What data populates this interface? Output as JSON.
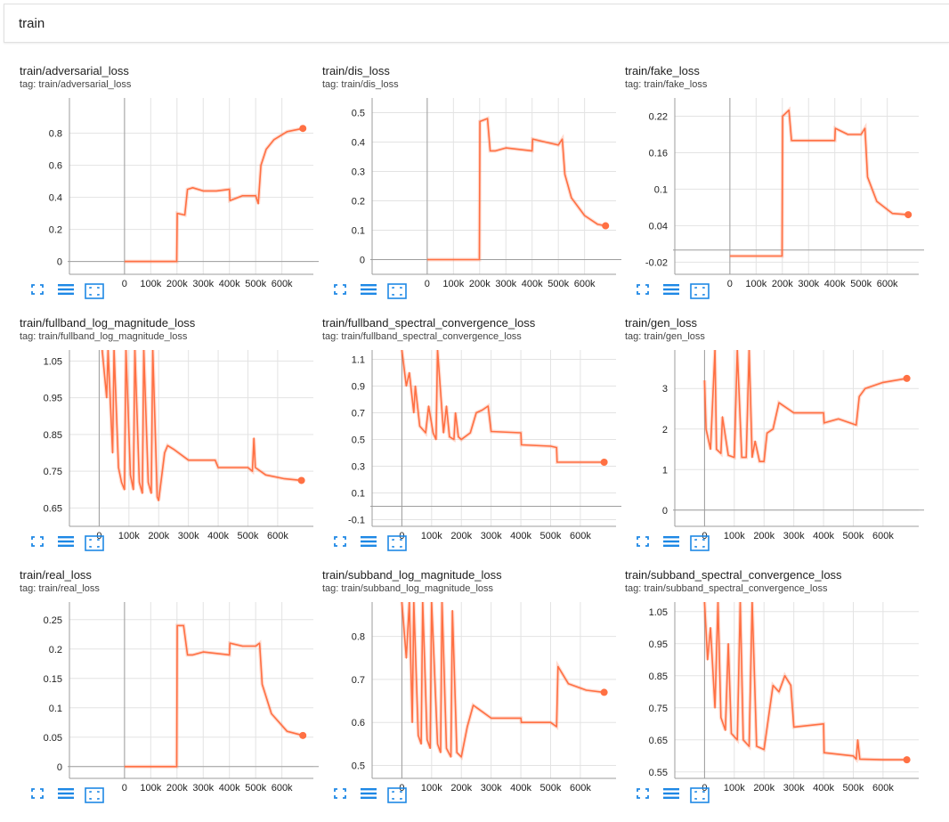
{
  "group": {
    "title": "train"
  },
  "accent_color": "#ff7043",
  "toolbar_icons": [
    "expand-icon",
    "list-icon",
    "fit-domain-icon"
  ],
  "chart_data": [
    {
      "type": "line",
      "title": "train/adversarial_loss",
      "tag": "tag: train/adversarial_loss",
      "xlim": [
        -210000,
        720000
      ],
      "ylim": [
        -0.08,
        1.02
      ],
      "xticks": [
        0,
        100000,
        200000,
        300000,
        400000,
        500000,
        600000
      ],
      "xtick_labels": [
        "0",
        "100k",
        "200k",
        "300k",
        "400k",
        "500k",
        "600k"
      ],
      "yticks": [
        0,
        0.2,
        0.4,
        0.6,
        0.8
      ],
      "ytick_labels": [
        "0",
        "0.2",
        "0.4",
        "0.6",
        "0.8"
      ],
      "x": [
        0,
        100000,
        199000,
        201000,
        230000,
        240000,
        260000,
        300000,
        350000,
        400000,
        402000,
        450000,
        500000,
        510000,
        520000,
        540000,
        570000,
        620000,
        680000
      ],
      "y": [
        0,
        0,
        0,
        0.3,
        0.29,
        0.45,
        0.46,
        0.44,
        0.44,
        0.45,
        0.38,
        0.41,
        0.41,
        0.36,
        0.6,
        0.7,
        0.76,
        0.81,
        0.83
      ]
    },
    {
      "type": "line",
      "title": "train/dis_loss",
      "tag": "tag: train/dis_loss",
      "xlim": [
        -210000,
        720000
      ],
      "ylim": [
        -0.05,
        0.55
      ],
      "xticks": [
        0,
        100000,
        200000,
        300000,
        400000,
        500000,
        600000
      ],
      "xtick_labels": [
        "0",
        "100k",
        "200k",
        "300k",
        "400k",
        "500k",
        "600k"
      ],
      "yticks": [
        0,
        0.1,
        0.2,
        0.3,
        0.4,
        0.5
      ],
      "ytick_labels": [
        "0",
        "0.1",
        "0.2",
        "0.3",
        "0.4",
        "0.5"
      ],
      "x": [
        0,
        100000,
        199000,
        201000,
        230000,
        240000,
        260000,
        300000,
        400000,
        402000,
        450000,
        500000,
        515000,
        525000,
        550000,
        600000,
        650000,
        680000
      ],
      "y": [
        0,
        0,
        0,
        0.47,
        0.48,
        0.37,
        0.37,
        0.38,
        0.37,
        0.41,
        0.4,
        0.39,
        0.41,
        0.29,
        0.21,
        0.15,
        0.12,
        0.115
      ]
    },
    {
      "type": "line",
      "title": "train/fake_loss",
      "tag": "tag: train/fake_loss",
      "xlim": [
        -210000,
        720000
      ],
      "ylim": [
        -0.04,
        0.25
      ],
      "xticks": [
        0,
        100000,
        200000,
        300000,
        400000,
        500000,
        600000
      ],
      "xtick_labels": [
        "0",
        "100k",
        "200k",
        "300k",
        "400k",
        "500k",
        "600k"
      ],
      "yticks": [
        -0.02,
        0.04,
        0.1,
        0.16,
        0.22
      ],
      "ytick_labels": [
        "-0.02",
        "0.04",
        "0.1",
        "0.16",
        "0.22"
      ],
      "x": [
        0,
        100000,
        199000,
        201000,
        225000,
        235000,
        260000,
        300000,
        400000,
        402000,
        450000,
        500000,
        515000,
        525000,
        560000,
        620000,
        680000
      ],
      "y": [
        -0.01,
        -0.01,
        -0.01,
        0.22,
        0.23,
        0.18,
        0.18,
        0.18,
        0.18,
        0.2,
        0.19,
        0.19,
        0.2,
        0.12,
        0.08,
        0.06,
        0.058
      ]
    },
    {
      "type": "line",
      "title": "train/fullband_log_magnitude_loss",
      "tag": "tag: train/fullband_log_magnitude_loss",
      "xlim": [
        -100000,
        720000
      ],
      "ylim": [
        0.6,
        1.08
      ],
      "xticks": [
        0,
        100000,
        200000,
        300000,
        400000,
        500000,
        600000
      ],
      "xtick_labels": [
        "0",
        "100k",
        "200k",
        "300k",
        "400k",
        "500k",
        "600k"
      ],
      "yticks": [
        0.65,
        0.75,
        0.85,
        0.95,
        1.05
      ],
      "ytick_labels": [
        "0.65",
        "0.75",
        "0.85",
        "0.95",
        "1.05"
      ],
      "x": [
        10000,
        25000,
        30000,
        45000,
        50000,
        65000,
        75000,
        85000,
        90000,
        105000,
        115000,
        120000,
        135000,
        145000,
        150000,
        165000,
        175000,
        180000,
        195000,
        200000,
        220000,
        230000,
        250000,
        300000,
        390000,
        400000,
        500000,
        515000,
        520000,
        525000,
        560000,
        620000,
        680000
      ],
      "y": [
        1.08,
        0.95,
        1.08,
        0.8,
        1.08,
        0.76,
        0.72,
        0.7,
        1.08,
        0.74,
        0.7,
        1.08,
        0.72,
        0.69,
        1.08,
        0.72,
        0.69,
        1.08,
        0.68,
        0.67,
        0.8,
        0.82,
        0.81,
        0.78,
        0.78,
        0.76,
        0.76,
        0.75,
        0.84,
        0.76,
        0.74,
        0.73,
        0.725
      ]
    },
    {
      "type": "line",
      "title": "train/fullband_spectral_convergence_loss",
      "tag": "tag: train/fullband_spectral_convergence_loss",
      "xlim": [
        -100000,
        720000
      ],
      "ylim": [
        -0.15,
        1.17
      ],
      "xticks": [
        0,
        100000,
        200000,
        300000,
        400000,
        500000,
        600000
      ],
      "xtick_labels": [
        "0",
        "100k",
        "200k",
        "300k",
        "400k",
        "500k",
        "600k"
      ],
      "yticks": [
        -0.1,
        0.1,
        0.3,
        0.5,
        0.7,
        0.9,
        1.1
      ],
      "ytick_labels": [
        "-0.1",
        "0.1",
        "0.3",
        "0.5",
        "0.7",
        "0.9",
        "1.1"
      ],
      "x": [
        0,
        15000,
        25000,
        40000,
        45000,
        60000,
        80000,
        90000,
        105000,
        115000,
        120000,
        140000,
        150000,
        160000,
        175000,
        180000,
        190000,
        200000,
        230000,
        250000,
        270000,
        290000,
        300000,
        400000,
        402000,
        500000,
        520000,
        522000,
        600000,
        680000
      ],
      "y": [
        1.17,
        0.9,
        1.0,
        0.7,
        0.9,
        0.6,
        0.55,
        0.75,
        0.55,
        0.5,
        1.17,
        0.55,
        0.75,
        0.52,
        0.5,
        0.7,
        0.52,
        0.5,
        0.55,
        0.7,
        0.72,
        0.75,
        0.56,
        0.55,
        0.46,
        0.45,
        0.44,
        0.33,
        0.33,
        0.33
      ]
    },
    {
      "type": "line",
      "title": "train/gen_loss",
      "tag": "tag: train/gen_loss",
      "xlim": [
        -100000,
        720000
      ],
      "ylim": [
        -0.4,
        3.95
      ],
      "xticks": [
        0,
        100000,
        200000,
        300000,
        400000,
        500000,
        600000
      ],
      "xtick_labels": [
        "0",
        "100k",
        "200k",
        "300k",
        "400k",
        "500k",
        "600k"
      ],
      "yticks": [
        0,
        1,
        2,
        3
      ],
      "ytick_labels": [
        "0",
        "1",
        "2",
        "3"
      ],
      "x": [
        0,
        5000,
        20000,
        35000,
        40000,
        55000,
        60000,
        80000,
        100000,
        110000,
        125000,
        140000,
        150000,
        160000,
        170000,
        185000,
        200000,
        210000,
        230000,
        250000,
        300000,
        400000,
        402000,
        450000,
        510000,
        520000,
        540000,
        600000,
        680000
      ],
      "y": [
        3.2,
        2,
        1.5,
        3.95,
        1.5,
        1.4,
        2.3,
        1.35,
        1.3,
        3.95,
        1.3,
        1.3,
        3.95,
        1.3,
        1.7,
        1.2,
        1.2,
        1.9,
        2.0,
        2.65,
        2.4,
        2.4,
        2.15,
        2.25,
        2.1,
        2.8,
        3.0,
        3.15,
        3.25
      ]
    },
    {
      "type": "line",
      "title": "train/real_loss",
      "tag": "tag: train/real_loss",
      "xlim": [
        -210000,
        720000
      ],
      "ylim": [
        -0.02,
        0.28
      ],
      "xticks": [
        0,
        100000,
        200000,
        300000,
        400000,
        500000,
        600000
      ],
      "xtick_labels": [
        "0",
        "100k",
        "200k",
        "300k",
        "400k",
        "500k",
        "600k"
      ],
      "yticks": [
        0,
        0.05,
        0.1,
        0.15,
        0.2,
        0.25
      ],
      "ytick_labels": [
        "0",
        "0.05",
        "0.1",
        "0.15",
        "0.2",
        "0.25"
      ],
      "x": [
        0,
        100000,
        199000,
        201000,
        225000,
        240000,
        260000,
        300000,
        400000,
        402000,
        450000,
        500000,
        515000,
        525000,
        560000,
        620000,
        680000
      ],
      "y": [
        0,
        0,
        0,
        0.24,
        0.24,
        0.19,
        0.19,
        0.195,
        0.19,
        0.21,
        0.205,
        0.205,
        0.21,
        0.14,
        0.09,
        0.06,
        0.053
      ]
    },
    {
      "type": "line",
      "title": "train/subband_log_magnitude_loss",
      "tag": "tag: train/subband_log_magnitude_loss",
      "xlim": [
        -100000,
        720000
      ],
      "ylim": [
        0.47,
        0.88
      ],
      "xticks": [
        0,
        100000,
        200000,
        300000,
        400000,
        500000,
        600000
      ],
      "xtick_labels": [
        "0",
        "100k",
        "200k",
        "300k",
        "400k",
        "500k",
        "600k"
      ],
      "yticks": [
        0.5,
        0.6,
        0.7,
        0.8
      ],
      "ytick_labels": [
        "0.5",
        "0.6",
        "0.7",
        "0.8"
      ],
      "x": [
        0,
        15000,
        25000,
        35000,
        40000,
        55000,
        65000,
        70000,
        85000,
        95000,
        100000,
        120000,
        130000,
        135000,
        150000,
        165000,
        170000,
        185000,
        200000,
        220000,
        240000,
        260000,
        300000,
        400000,
        402000,
        500000,
        520000,
        525000,
        560000,
        620000,
        680000
      ],
      "y": [
        0.88,
        0.75,
        0.88,
        0.6,
        0.88,
        0.57,
        0.55,
        0.88,
        0.56,
        0.54,
        0.88,
        0.55,
        0.53,
        0.88,
        0.54,
        0.52,
        0.86,
        0.53,
        0.52,
        0.59,
        0.64,
        0.63,
        0.61,
        0.61,
        0.6,
        0.6,
        0.59,
        0.73,
        0.69,
        0.675,
        0.67
      ]
    },
    {
      "type": "line",
      "title": "train/subband_spectral_convergence_loss",
      "tag": "tag: train/subband_spectral_convergence_loss",
      "xlim": [
        -100000,
        720000
      ],
      "ylim": [
        0.53,
        1.08
      ],
      "xticks": [
        0,
        100000,
        200000,
        300000,
        400000,
        500000,
        600000
      ],
      "xtick_labels": [
        "0",
        "100k",
        "200k",
        "300k",
        "400k",
        "500k",
        "600k"
      ],
      "yticks": [
        0.55,
        0.65,
        0.75,
        0.85,
        0.95,
        1.05
      ],
      "ytick_labels": [
        "0.55",
        "0.65",
        "0.75",
        "0.85",
        "0.95",
        "1.05"
      ],
      "x": [
        0,
        10000,
        20000,
        35000,
        45000,
        55000,
        70000,
        80000,
        90000,
        110000,
        120000,
        130000,
        150000,
        160000,
        175000,
        200000,
        230000,
        250000,
        270000,
        290000,
        300000,
        400000,
        402000,
        500000,
        510000,
        515000,
        522000,
        600000,
        680000
      ],
      "y": [
        1.08,
        0.9,
        1.0,
        0.75,
        1.08,
        0.72,
        0.68,
        0.95,
        0.67,
        0.65,
        1.08,
        0.65,
        0.63,
        1.08,
        0.63,
        0.62,
        0.82,
        0.8,
        0.85,
        0.82,
        0.69,
        0.7,
        0.61,
        0.6,
        0.59,
        0.65,
        0.59,
        0.588,
        0.588
      ]
    }
  ]
}
